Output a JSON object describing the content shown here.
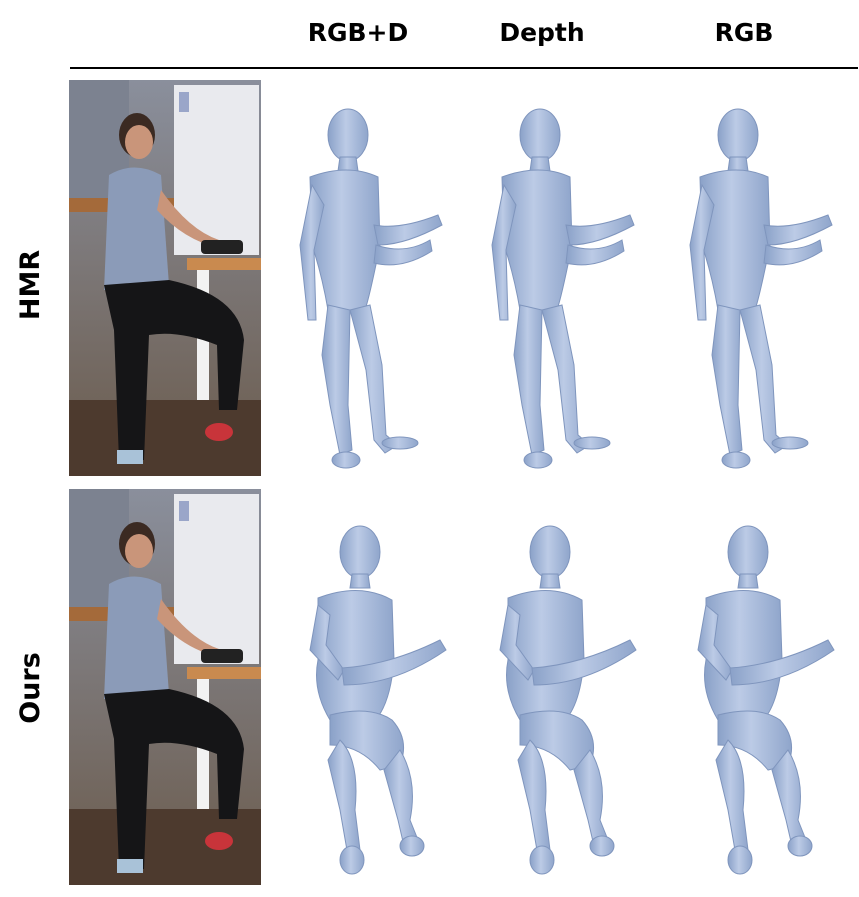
{
  "columns": [
    "RGB+D",
    "Depth",
    "RGB"
  ],
  "rows": [
    {
      "label": "HMR",
      "photo": "rgb-frame-seated-woman-at-table",
      "meshes": [
        "hmr-mesh-rgbd",
        "hmr-mesh-depth",
        "hmr-mesh-rgb"
      ],
      "pose": "standing"
    },
    {
      "label": "Ours",
      "photo": "rgb-frame-seated-woman-at-table",
      "meshes": [
        "ours-mesh-rgbd",
        "ours-mesh-depth",
        "ours-mesh-rgb"
      ],
      "pose": "sitting"
    }
  ],
  "colors": {
    "mesh": "#a9bdde",
    "mesh_shadow": "#7f95bd",
    "rule": "#000000"
  }
}
